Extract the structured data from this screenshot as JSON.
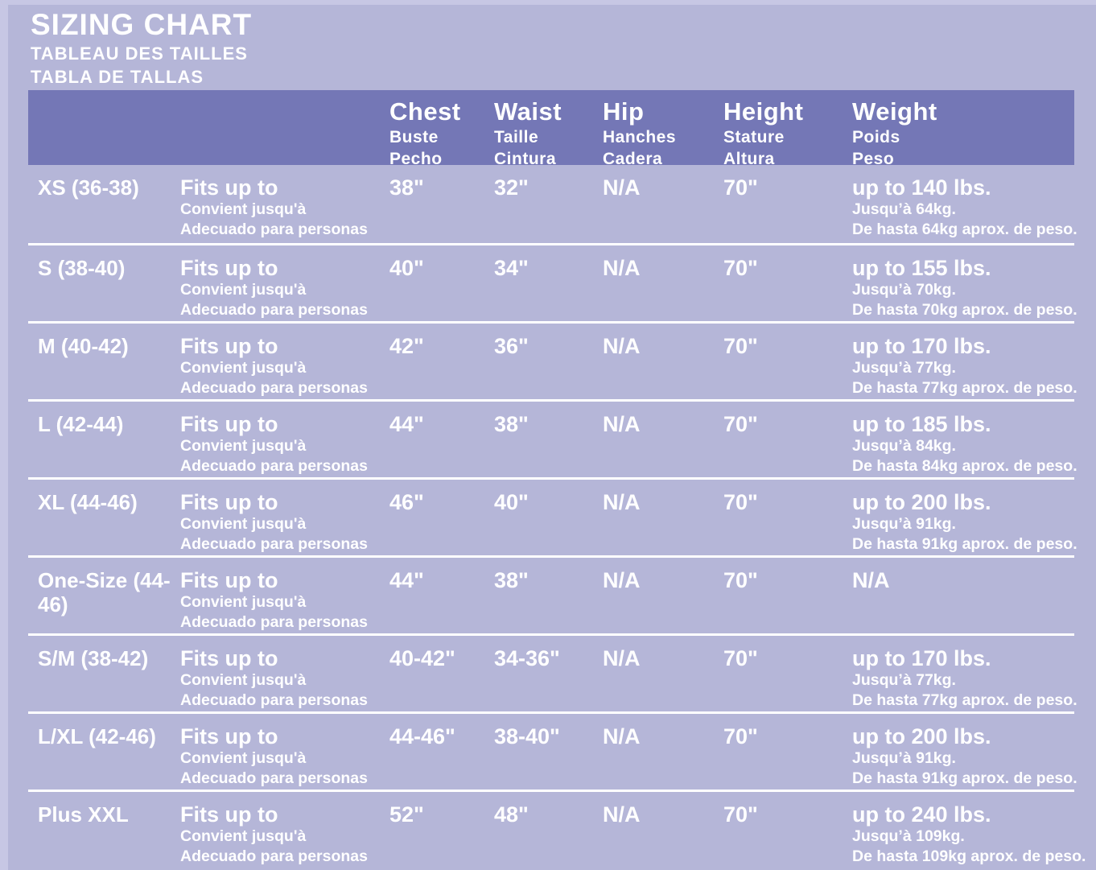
{
  "title": {
    "main": "SIZING CHART",
    "fr": "TABLEAU DES TAILLES",
    "es": "TABLA DE TALLAS"
  },
  "colors": {
    "page_edge": "#c7c7e4",
    "page_bg": "#b5b6d8",
    "header_band": "#7477b6",
    "text": "#ffffff",
    "divider": "#ffffff"
  },
  "header": {
    "chest": {
      "en": "Chest",
      "fr": "Buste",
      "es": "Pecho"
    },
    "waist": {
      "en": "Waist",
      "fr": "Taille",
      "es": "Cintura"
    },
    "hip": {
      "en": "Hip",
      "fr": "Hanches",
      "es": "Cadera"
    },
    "height": {
      "en": "Height",
      "fr": "Stature",
      "es": "Altura"
    },
    "weight": {
      "en": "Weight",
      "fr": "Poids",
      "es": "Peso"
    }
  },
  "fits_label": {
    "en": "Fits up to",
    "fr": "Convient jusqu'à",
    "es": "Adecuado para personas"
  },
  "rows": [
    {
      "size": "XS (36-38)",
      "chest": "38\"",
      "waist": "32\"",
      "hip": "N/A",
      "height": "70\"",
      "weight": "up to 140 lbs.",
      "weight_fr": "Jusqu’à 64kg.",
      "weight_es": "De hasta 64kg aprox. de peso."
    },
    {
      "size": "S (38-40)",
      "chest": "40\"",
      "waist": "34\"",
      "hip": "N/A",
      "height": "70\"",
      "weight": "up to 155 lbs.",
      "weight_fr": "Jusqu’à 70kg.",
      "weight_es": "De hasta 70kg aprox. de peso."
    },
    {
      "size": "M (40-42)",
      "chest": "42\"",
      "waist": "36\"",
      "hip": "N/A",
      "height": "70\"",
      "weight": "up to 170 lbs.",
      "weight_fr": "Jusqu’à 77kg.",
      "weight_es": "De hasta 77kg aprox. de peso."
    },
    {
      "size": "L (42-44)",
      "chest": "44\"",
      "waist": "38\"",
      "hip": "N/A",
      "height": "70\"",
      "weight": "up to 185 lbs.",
      "weight_fr": "Jusqu’à 84kg.",
      "weight_es": "De hasta 84kg aprox. de peso."
    },
    {
      "size": "XL (44-46)",
      "chest": "46\"",
      "waist": "40\"",
      "hip": "N/A",
      "height": "70\"",
      "weight": "up to 200 lbs.",
      "weight_fr": "Jusqu’à 91kg.",
      "weight_es": "De hasta 91kg aprox. de peso."
    },
    {
      "size": "One-Size (44-46)",
      "chest": "44\"",
      "waist": "38\"",
      "hip": "N/A",
      "height": "70\"",
      "weight": "N/A",
      "weight_fr": "",
      "weight_es": ""
    },
    {
      "size": "S/M (38-42)",
      "chest": "40-42\"",
      "waist": "34-36\"",
      "hip": "N/A",
      "height": "70\"",
      "weight": "up to 170 lbs.",
      "weight_fr": "Jusqu’à 77kg.",
      "weight_es": "De hasta 77kg aprox. de peso."
    },
    {
      "size": "L/XL (42-46)",
      "chest": "44-46\"",
      "waist": "38-40\"",
      "hip": "N/A",
      "height": "70\"",
      "weight": "up to 200 lbs.",
      "weight_fr": "Jusqu’à 91kg.",
      "weight_es": "De hasta 91kg aprox. de peso."
    },
    {
      "size": "Plus XXL",
      "chest": "52\"",
      "waist": "48\"",
      "hip": "N/A",
      "height": "70\"",
      "weight": "up to 240 lbs.",
      "weight_fr": "Jusqu’à 109kg.",
      "weight_es": "De hasta 109kg aprox. de peso."
    }
  ]
}
